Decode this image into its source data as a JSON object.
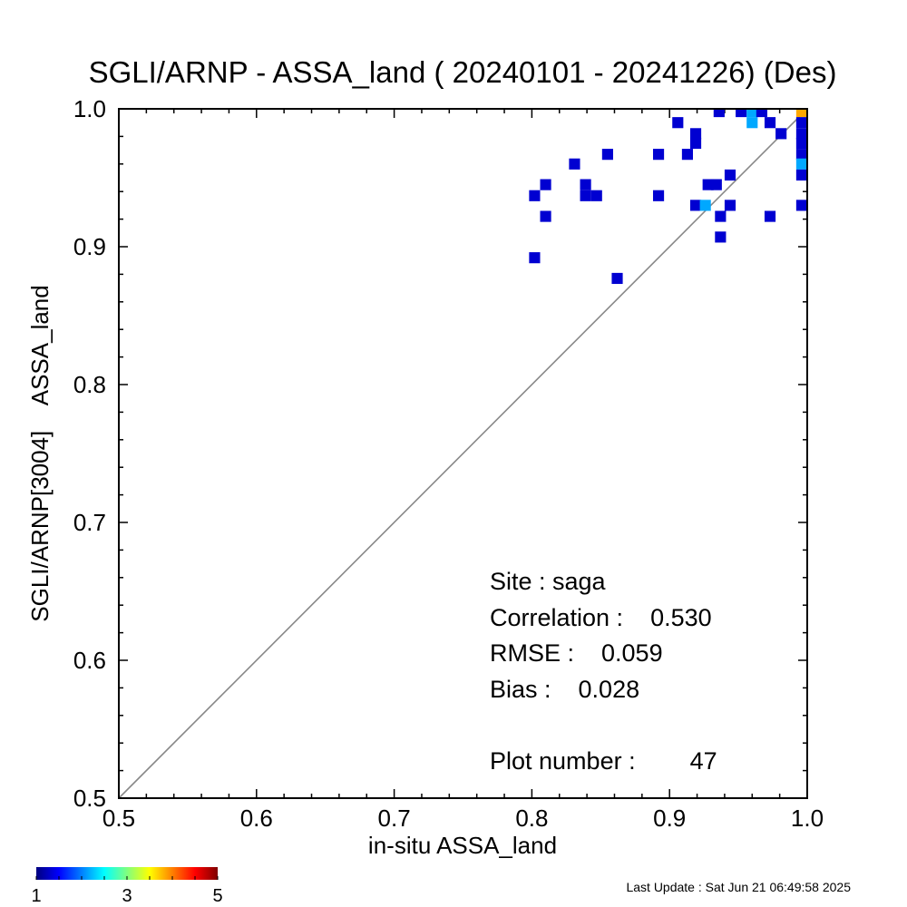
{
  "chart_data": {
    "type": "heatmap",
    "title": "SGLI/ARNP - ASSA_land ( 20240101 - 20241226) (Des)",
    "xlabel": "in-situ ASSA_land",
    "ylabel": "SGLI/ARNP[3004]    ASSA_land",
    "xlim": [
      0.5,
      1.0
    ],
    "ylim": [
      0.5,
      1.0
    ],
    "x_ticks": [
      "0.5",
      "0.6",
      "0.7",
      "0.8",
      "0.9",
      "1.0"
    ],
    "y_ticks": [
      "0.5",
      "0.6",
      "0.7",
      "0.8",
      "0.9",
      "1.0"
    ],
    "one_to_one_line": true,
    "bin_size": 0.008,
    "colorbar": {
      "min": 1,
      "max": 5,
      "tick_labels": [
        "1",
        "3",
        "5"
      ]
    },
    "stats": {
      "site": "Site : saga",
      "correlation": "Correlation :    0.530",
      "rmse": "RMSE :    0.059",
      "bias": "Bias :    0.028",
      "plot_number": "Plot number :        47"
    },
    "last_update": "Last Update : Sat Jun 21 06:49:58 2025",
    "cells": [
      {
        "x": 0.802,
        "y": 0.892,
        "count": 1
      },
      {
        "x": 0.802,
        "y": 0.937,
        "count": 1
      },
      {
        "x": 0.81,
        "y": 0.945,
        "count": 1
      },
      {
        "x": 0.81,
        "y": 0.922,
        "count": 1
      },
      {
        "x": 0.831,
        "y": 0.96,
        "count": 1
      },
      {
        "x": 0.839,
        "y": 0.945,
        "count": 1
      },
      {
        "x": 0.839,
        "y": 0.937,
        "count": 1
      },
      {
        "x": 0.847,
        "y": 0.937,
        "count": 1
      },
      {
        "x": 0.855,
        "y": 0.967,
        "count": 1
      },
      {
        "x": 0.862,
        "y": 0.877,
        "count": 1
      },
      {
        "x": 0.892,
        "y": 0.967,
        "count": 1
      },
      {
        "x": 0.892,
        "y": 0.937,
        "count": 1
      },
      {
        "x": 0.906,
        "y": 0.99,
        "count": 1
      },
      {
        "x": 0.913,
        "y": 0.967,
        "count": 1
      },
      {
        "x": 0.919,
        "y": 0.982,
        "count": 1
      },
      {
        "x": 0.919,
        "y": 0.975,
        "count": 1
      },
      {
        "x": 0.919,
        "y": 0.93,
        "count": 1
      },
      {
        "x": 0.926,
        "y": 0.93,
        "count": 2
      },
      {
        "x": 0.928,
        "y": 0.945,
        "count": 1
      },
      {
        "x": 0.934,
        "y": 0.945,
        "count": 1
      },
      {
        "x": 0.936,
        "y": 0.998,
        "count": 1
      },
      {
        "x": 0.937,
        "y": 0.922,
        "count": 1
      },
      {
        "x": 0.937,
        "y": 0.907,
        "count": 1
      },
      {
        "x": 0.944,
        "y": 0.952,
        "count": 1
      },
      {
        "x": 0.944,
        "y": 0.93,
        "count": 1
      },
      {
        "x": 0.952,
        "y": 0.998,
        "count": 1
      },
      {
        "x": 0.96,
        "y": 0.998,
        "count": 2
      },
      {
        "x": 0.96,
        "y": 0.99,
        "count": 2
      },
      {
        "x": 0.967,
        "y": 0.998,
        "count": 1
      },
      {
        "x": 0.973,
        "y": 0.99,
        "count": 1
      },
      {
        "x": 0.973,
        "y": 0.922,
        "count": 1
      },
      {
        "x": 0.981,
        "y": 0.982,
        "count": 1
      },
      {
        "x": 0.996,
        "y": 0.998,
        "count": 4
      },
      {
        "x": 0.996,
        "y": 0.99,
        "count": 1
      },
      {
        "x": 0.996,
        "y": 0.982,
        "count": 1
      },
      {
        "x": 0.996,
        "y": 0.975,
        "count": 1
      },
      {
        "x": 0.996,
        "y": 0.967,
        "count": 1
      },
      {
        "x": 0.996,
        "y": 0.96,
        "count": 2
      },
      {
        "x": 0.996,
        "y": 0.952,
        "count": 1
      },
      {
        "x": 0.996,
        "y": 0.93,
        "count": 1
      }
    ]
  }
}
